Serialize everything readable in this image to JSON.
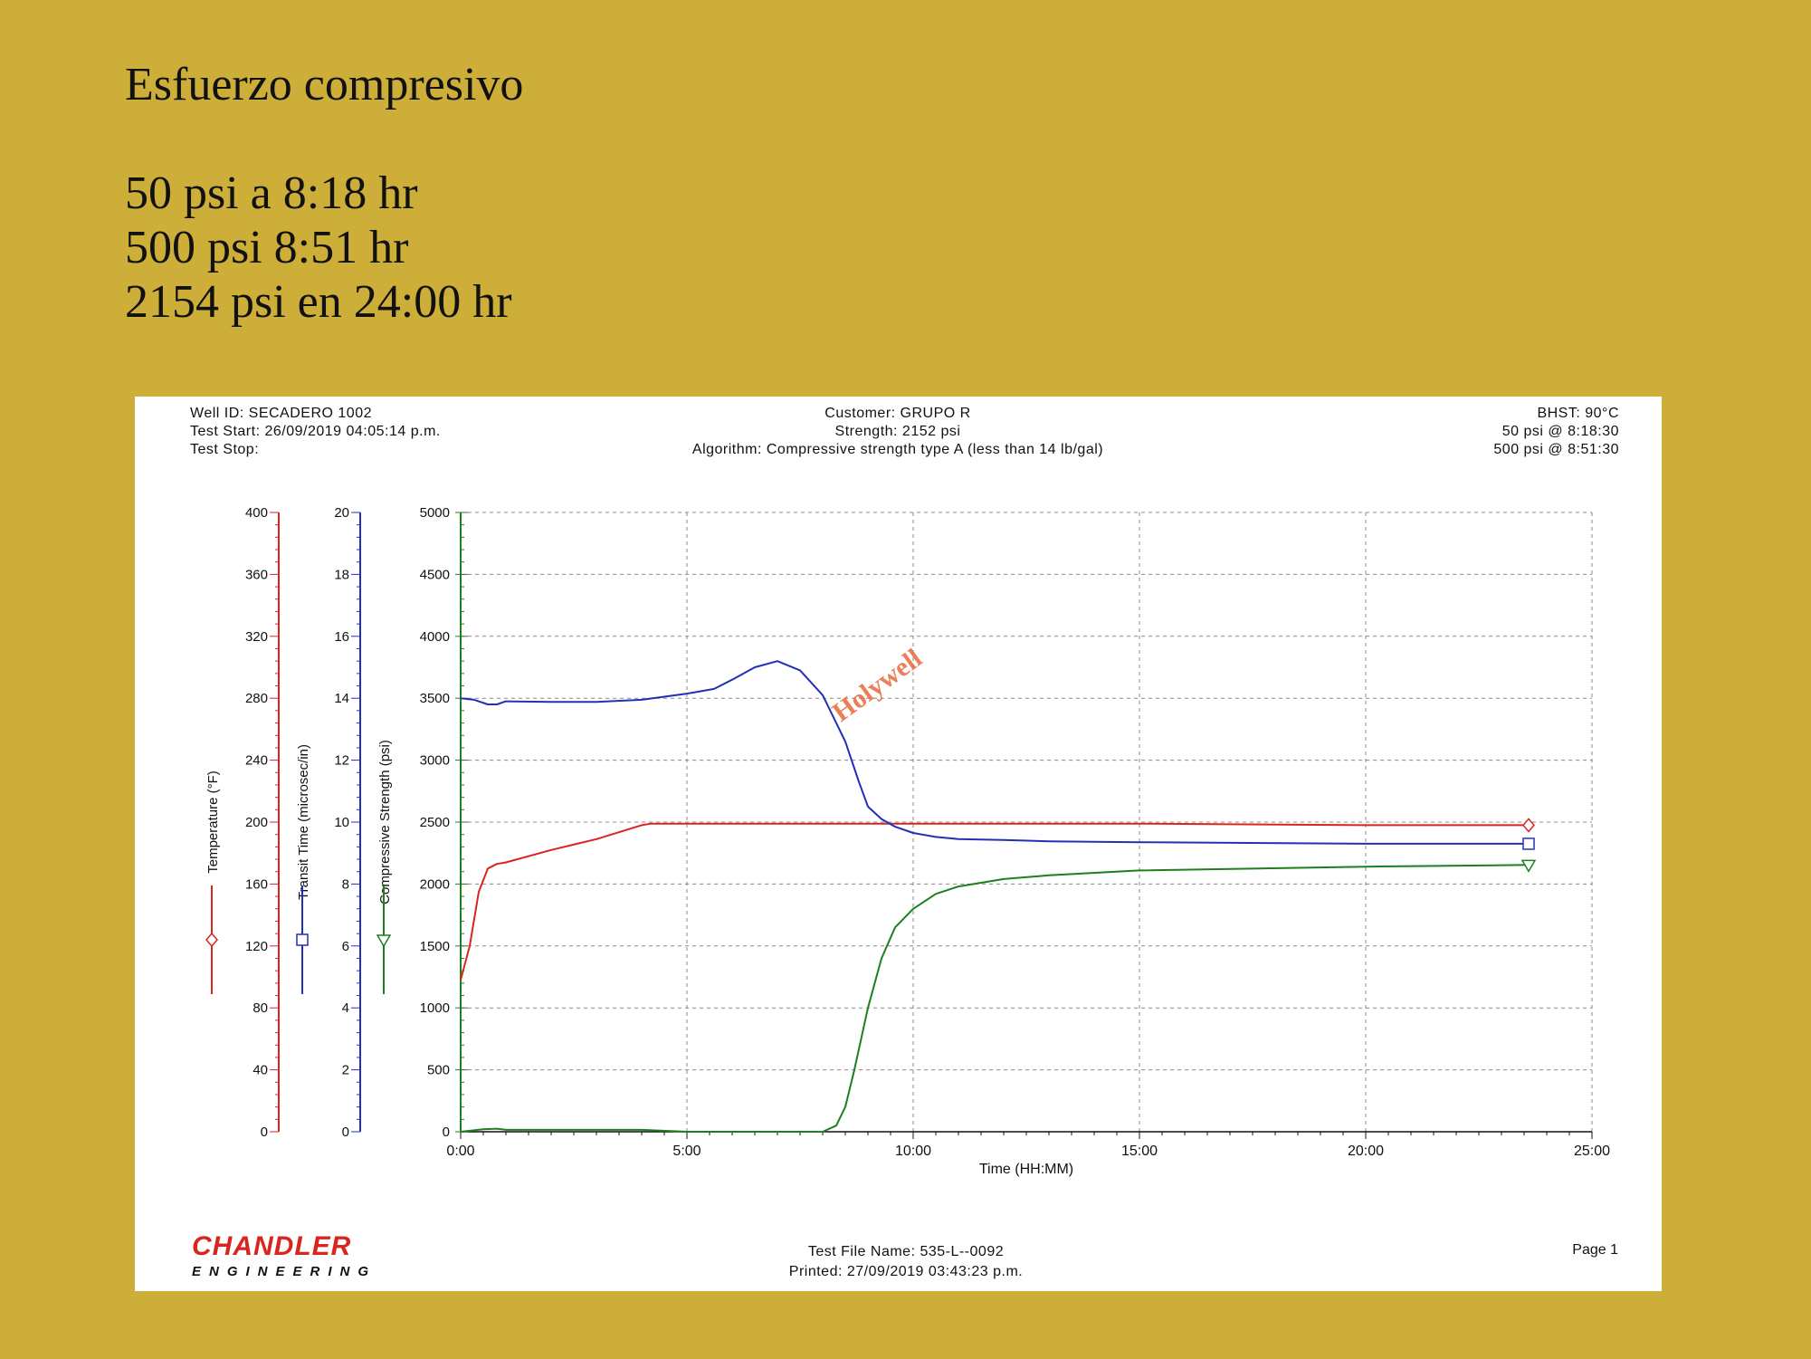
{
  "slide": {
    "title": "Esfuerzo compresivo",
    "lines": [
      "50 psi a 8:18 hr",
      "500 psi 8:51 hr",
      "2154 psi en 24:00 hr"
    ]
  },
  "report": {
    "header_left": [
      "Well ID: SECADERO 1002",
      "Test Start: 26/09/2019 04:05:14 p.m.",
      "Test Stop:"
    ],
    "header_center": [
      "Customer: GRUPO R",
      "Strength: 2152 psi",
      "Algorithm: Compressive strength type A (less than 14 lb/gal)"
    ],
    "header_right": [
      "BHST: 90°C",
      "50 psi @ 8:18:30",
      "500 psi @ 8:51:30"
    ],
    "footer": {
      "brand_name": "CHANDLER",
      "brand_sub": "ENGINEERING",
      "test_file": "Test File Name: 535-L--0092",
      "printed": "Printed: 27/09/2019 03:43:23 p.m.",
      "page": "Page 1"
    }
  },
  "colors": {
    "background": "#CDAE38",
    "temperature": "#D9251D",
    "transit_time": "#2230B8",
    "compressive_strength": "#1E7F1E",
    "watermark": "#E8693C"
  },
  "chart_data": {
    "type": "line",
    "title": "",
    "xlabel": "Time (HH:MM)",
    "x_ticks": [
      "0:00",
      "5:00",
      "10:00",
      "15:00",
      "20:00",
      "25:00"
    ],
    "xlim": [
      0,
      25
    ],
    "grid": true,
    "watermark": "Holywell",
    "axes": [
      {
        "id": "temperature",
        "label": "Temperature (°F)",
        "ylim": [
          0,
          400
        ],
        "ticks": [
          0,
          40,
          80,
          120,
          160,
          200,
          240,
          280,
          320,
          360,
          400
        ],
        "marker": "diamond"
      },
      {
        "id": "transit_time",
        "label": "Transit Time (microsec/in)",
        "ylim": [
          0,
          20
        ],
        "ticks": [
          0,
          2,
          4,
          6,
          8,
          10,
          12,
          14,
          16,
          18,
          20
        ],
        "marker": "square"
      },
      {
        "id": "compressive_strength",
        "label": "Compressive Strength (psi)",
        "ylim": [
          0,
          5000
        ],
        "ticks": [
          0,
          500,
          1000,
          1500,
          2000,
          2500,
          3000,
          3500,
          4000,
          4500,
          5000
        ],
        "marker": "triangle"
      }
    ],
    "series": [
      {
        "axis": "temperature",
        "x": [
          0,
          0.2,
          0.4,
          0.6,
          0.8,
          1.0,
          2.0,
          3.0,
          4.0,
          4.2,
          6,
          10,
          15,
          20,
          23.6
        ],
        "y": [
          98,
          120,
          155,
          170,
          173,
          174,
          182,
          189,
          198,
          199,
          199,
          199,
          199,
          198,
          198
        ]
      },
      {
        "axis": "transit_time",
        "x": [
          0,
          0.3,
          0.6,
          0.8,
          1.0,
          2,
          3,
          4,
          5,
          5.6,
          6,
          6.5,
          7,
          7.5,
          8,
          8.5,
          8.8,
          9.0,
          9.3,
          9.6,
          10,
          10.5,
          11,
          12,
          13,
          15,
          20,
          23.6
        ],
        "y": [
          14.0,
          13.95,
          13.8,
          13.8,
          13.9,
          13.88,
          13.88,
          13.95,
          14.15,
          14.3,
          14.6,
          15.0,
          15.2,
          14.9,
          14.1,
          12.6,
          11.3,
          10.5,
          10.1,
          9.85,
          9.65,
          9.52,
          9.45,
          9.42,
          9.38,
          9.35,
          9.3,
          9.3
        ]
      },
      {
        "axis": "compressive_strength",
        "x": [
          0,
          0.5,
          0.8,
          1.0,
          2,
          4,
          5,
          6,
          7,
          8.0,
          8.3,
          8.5,
          8.7,
          9.0,
          9.3,
          9.6,
          10.0,
          10.5,
          11,
          12,
          13,
          15,
          20,
          23.6
        ],
        "y": [
          0,
          20,
          25,
          15,
          15,
          15,
          0,
          0,
          0,
          0,
          50,
          200,
          500,
          1000,
          1400,
          1650,
          1800,
          1920,
          1980,
          2040,
          2070,
          2110,
          2140,
          2154
        ]
      }
    ]
  }
}
